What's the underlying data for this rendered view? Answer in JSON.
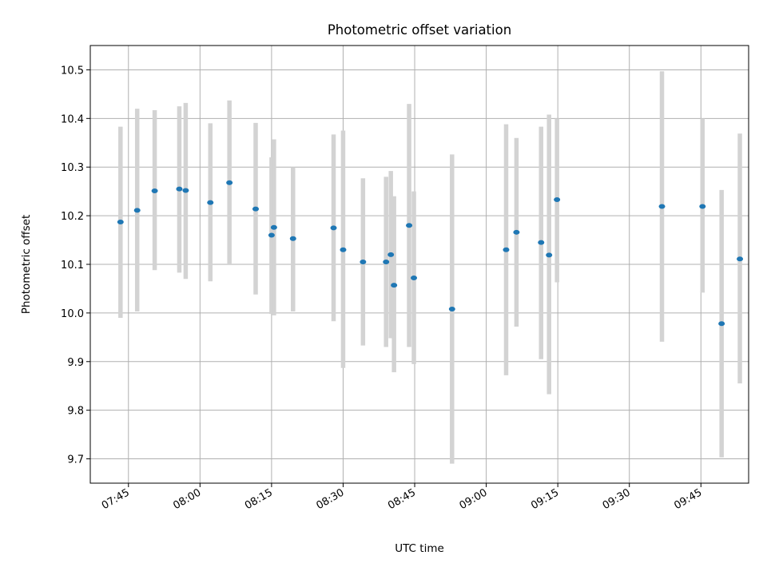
{
  "chart_data": {
    "type": "scatter",
    "title": "Photometric offset variation",
    "xlabel": "UTC time",
    "ylabel": "Photometric offset",
    "grid": true,
    "xlim": [
      "07:37",
      "09:55"
    ],
    "ylim": [
      9.65,
      10.55
    ],
    "x_ticks": [
      "07:45",
      "08:00",
      "08:15",
      "08:30",
      "08:45",
      "09:00",
      "09:15",
      "09:30",
      "09:45"
    ],
    "y_ticks": [
      "9.7",
      "9.8",
      "9.9",
      "10.0",
      "10.1",
      "10.2",
      "10.3",
      "10.4",
      "10.5"
    ],
    "colors": {
      "point": "#1f77b4",
      "errorbar": "#d3d3d3",
      "grid": "#b0b0b0"
    },
    "points": [
      {
        "t": "07:43:20",
        "y": 10.187,
        "lo": 9.99,
        "hi": 10.383
      },
      {
        "t": "07:46:50",
        "y": 10.211,
        "lo": 10.003,
        "hi": 10.42
      },
      {
        "t": "07:50:30",
        "y": 10.251,
        "lo": 10.088,
        "hi": 10.417
      },
      {
        "t": "07:55:40",
        "y": 10.255,
        "lo": 10.083,
        "hi": 10.425
      },
      {
        "t": "07:57:00",
        "y": 10.252,
        "lo": 10.07,
        "hi": 10.432
      },
      {
        "t": "08:02:10",
        "y": 10.227,
        "lo": 10.065,
        "hi": 10.39
      },
      {
        "t": "08:06:10",
        "y": 10.268,
        "lo": 10.1,
        "hi": 10.437
      },
      {
        "t": "08:11:40",
        "y": 10.214,
        "lo": 10.038,
        "hi": 10.391
      },
      {
        "t": "08:15:00",
        "y": 10.16,
        "lo": 9.998,
        "hi": 10.32
      },
      {
        "t": "08:15:30",
        "y": 10.176,
        "lo": 9.995,
        "hi": 10.357
      },
      {
        "t": "08:19:30",
        "y": 10.153,
        "lo": 10.003,
        "hi": 10.3
      },
      {
        "t": "08:28:00",
        "y": 10.175,
        "lo": 9.983,
        "hi": 10.367
      },
      {
        "t": "08:30:00",
        "y": 10.13,
        "lo": 9.887,
        "hi": 10.375
      },
      {
        "t": "08:34:10",
        "y": 10.105,
        "lo": 9.933,
        "hi": 10.277
      },
      {
        "t": "08:39:00",
        "y": 10.105,
        "lo": 9.93,
        "hi": 10.28
      },
      {
        "t": "08:40:00",
        "y": 10.12,
        "lo": 9.948,
        "hi": 10.292
      },
      {
        "t": "08:40:40",
        "y": 10.057,
        "lo": 9.878,
        "hi": 10.24
      },
      {
        "t": "08:43:50",
        "y": 10.18,
        "lo": 9.93,
        "hi": 10.43
      },
      {
        "t": "08:44:50",
        "y": 10.072,
        "lo": 9.895,
        "hi": 10.25
      },
      {
        "t": "08:52:50",
        "y": 10.008,
        "lo": 9.69,
        "hi": 10.326
      },
      {
        "t": "09:04:10",
        "y": 10.13,
        "lo": 9.872,
        "hi": 10.388
      },
      {
        "t": "09:06:20",
        "y": 10.166,
        "lo": 9.972,
        "hi": 10.36
      },
      {
        "t": "09:11:30",
        "y": 10.145,
        "lo": 9.905,
        "hi": 10.383
      },
      {
        "t": "09:13:10",
        "y": 10.119,
        "lo": 9.833,
        "hi": 10.408
      },
      {
        "t": "09:14:50",
        "y": 10.233,
        "lo": 10.063,
        "hi": 10.4
      },
      {
        "t": "09:36:50",
        "y": 10.219,
        "lo": 9.941,
        "hi": 10.497
      },
      {
        "t": "09:45:20",
        "y": 10.219,
        "lo": 10.042,
        "hi": 10.4
      },
      {
        "t": "09:49:20",
        "y": 9.978,
        "lo": 9.703,
        "hi": 10.253
      },
      {
        "t": "09:53:10",
        "y": 10.111,
        "lo": 9.855,
        "hi": 10.369
      }
    ]
  }
}
